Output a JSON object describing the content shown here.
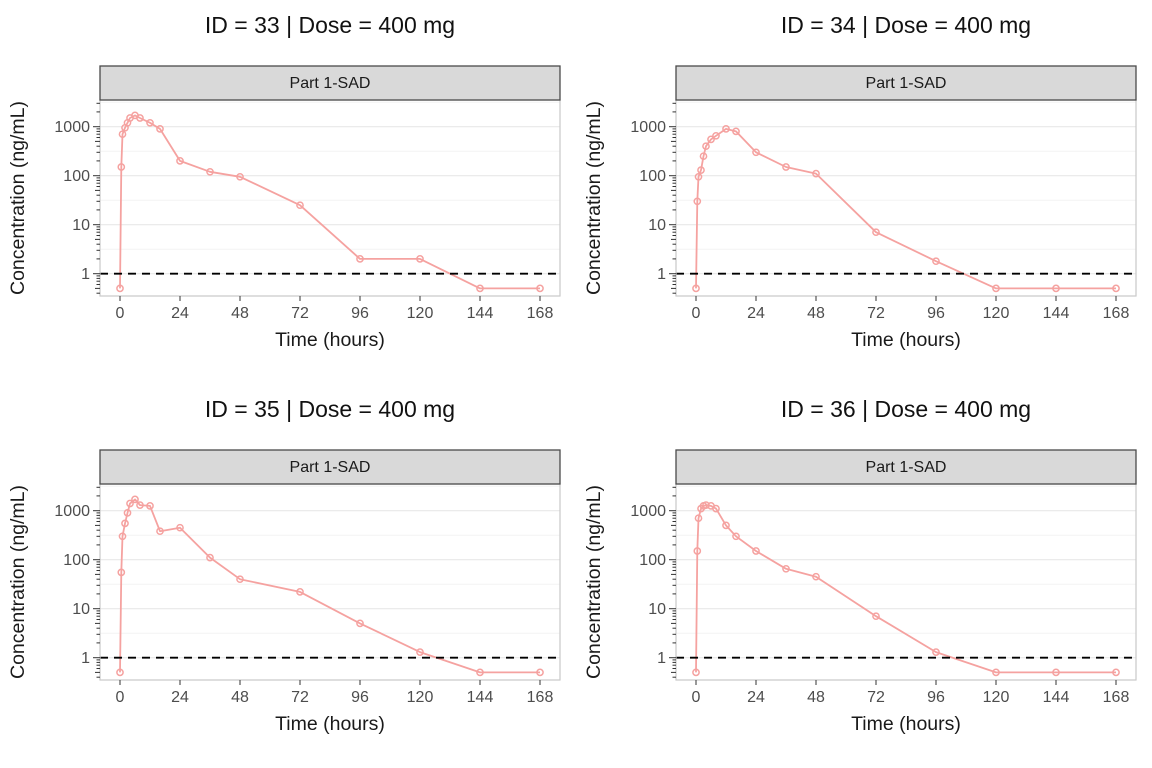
{
  "figure": {
    "x_axis_label": "Time (hours)",
    "y_axis_label": "Concentration (ng/mL)",
    "strip_label": "Part 1-SAD",
    "x_ticks": [
      0,
      24,
      48,
      72,
      96,
      120,
      144,
      168
    ],
    "y_ticks": [
      1,
      10,
      100,
      1000
    ],
    "lloq": 1,
    "colors": {
      "series": "#F5A2A0",
      "lloq_line": "#000000",
      "strip_fill": "#D9D9D9",
      "strip_border": "#4A4A4A",
      "panel_border": "#C9C9C9",
      "grid_major": "#E8E8E8",
      "grid_minor": "#F3F3F3",
      "tick": "#333333",
      "text": "#4D4D4D",
      "title": "#1A1A1A"
    }
  },
  "chart_data": [
    {
      "type": "line",
      "title": "ID = 33 | Dose = 400 mg",
      "facet": "Part 1-SAD",
      "xlabel": "Time (hours)",
      "ylabel": "Concentration (ng/mL)",
      "yscale": "log",
      "legend": "none",
      "x": [
        0,
        0.5,
        1,
        2,
        3,
        4,
        6,
        8,
        12,
        16,
        24,
        36,
        48,
        72,
        96,
        120,
        144,
        168
      ],
      "y": [
        0.5,
        150,
        700,
        950,
        1200,
        1500,
        1700,
        1500,
        1200,
        900,
        200,
        120,
        95,
        25,
        2,
        2,
        0.5,
        0.5
      ],
      "lloq": 1,
      "xlim": [
        -8,
        176
      ],
      "ylim": [
        0.35,
        3500
      ]
    },
    {
      "type": "line",
      "title": "ID = 34 | Dose = 400 mg",
      "facet": "Part 1-SAD",
      "xlabel": "Time (hours)",
      "ylabel": "Concentration (ng/mL)",
      "yscale": "log",
      "legend": "none",
      "x": [
        0,
        0.5,
        1,
        2,
        3,
        4,
        6,
        8,
        12,
        16,
        24,
        36,
        48,
        72,
        96,
        120,
        144,
        168
      ],
      "y": [
        0.5,
        30,
        95,
        130,
        250,
        400,
        550,
        650,
        900,
        800,
        300,
        150,
        110,
        7,
        1.8,
        0.5,
        0.5,
        0.5
      ],
      "lloq": 1,
      "xlim": [
        -8,
        176
      ],
      "ylim": [
        0.35,
        3500
      ]
    },
    {
      "type": "line",
      "title": "ID = 35 | Dose = 400 mg",
      "facet": "Part 1-SAD",
      "xlabel": "Time (hours)",
      "ylabel": "Concentration (ng/mL)",
      "yscale": "log",
      "legend": "none",
      "x": [
        0,
        0.5,
        1,
        2,
        3,
        4,
        6,
        8,
        12,
        16,
        24,
        36,
        48,
        72,
        96,
        120,
        144,
        168
      ],
      "y": [
        0.5,
        55,
        300,
        550,
        900,
        1400,
        1700,
        1300,
        1250,
        380,
        450,
        110,
        40,
        22,
        5,
        1.3,
        0.5,
        0.5
      ],
      "lloq": 1,
      "xlim": [
        -8,
        176
      ],
      "ylim": [
        0.35,
        3500
      ]
    },
    {
      "type": "line",
      "title": "ID = 36 | Dose = 400 mg",
      "facet": "Part 1-SAD",
      "xlabel": "Time (hours)",
      "ylabel": "Concentration (ng/mL)",
      "yscale": "log",
      "legend": "none",
      "x": [
        0,
        0.5,
        1,
        2,
        3,
        4,
        6,
        8,
        12,
        16,
        24,
        36,
        48,
        72,
        96,
        120,
        144,
        168
      ],
      "y": [
        0.5,
        150,
        700,
        1100,
        1250,
        1300,
        1250,
        1100,
        500,
        300,
        150,
        65,
        45,
        7,
        1.3,
        0.5,
        0.5,
        0.5
      ],
      "lloq": 1,
      "xlim": [
        -8,
        176
      ],
      "ylim": [
        0.35,
        3500
      ]
    }
  ]
}
